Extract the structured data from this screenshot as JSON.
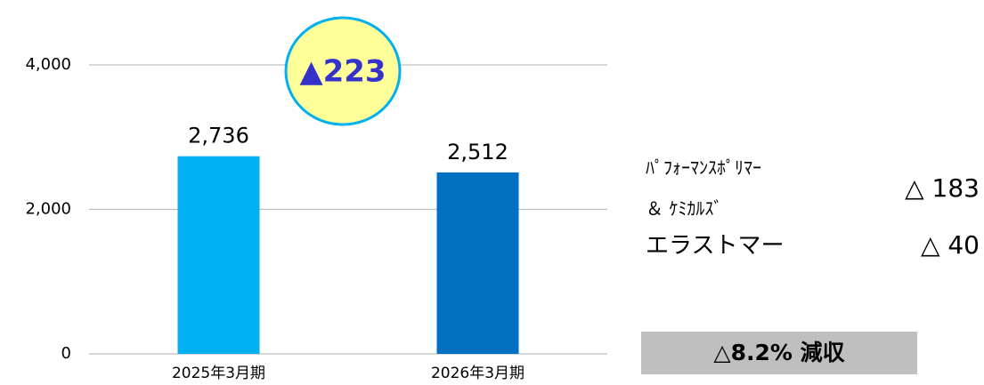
{
  "chart_data": {
    "type": "bar",
    "categories": [
      "2025年3月期",
      "2026年3月期"
    ],
    "values": [
      2736,
      2512
    ],
    "value_labels": [
      "2,736",
      "2,512"
    ],
    "colors": [
      "#00b0f0",
      "#0070c0"
    ],
    "ylim": [
      0,
      4000
    ],
    "yticks": [
      0,
      {
        "value": 2000,
        "label": "2,000"
      },
      {
        "value": 4000,
        "label": "4,000"
      }
    ],
    "grid": true,
    "change_badge": "▲223",
    "breakdown": [
      {
        "name_lines": [
          "ﾊﾟﾌｫｰﾏﾝｽﾎﾟﾘﾏｰ",
          "＆ ｹﾐｶﾙｽﾞ"
        ],
        "change": "△ 183"
      },
      {
        "name_lines": [
          "エラストマー"
        ],
        "change": "△ 40"
      }
    ],
    "summary": "△8.2% 減収"
  }
}
